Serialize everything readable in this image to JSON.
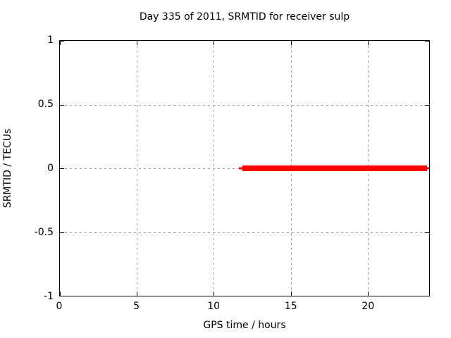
{
  "chart_data": {
    "type": "line",
    "title": "Day 335 of 2011, SRMTID for receiver sulp",
    "xlabel": "GPS time / hours",
    "ylabel": "SRMTID / TECUs",
    "xlim": [
      0,
      24
    ],
    "ylim": [
      -1,
      1
    ],
    "grid": true,
    "legend": false,
    "xticks": [
      {
        "v": 0,
        "label": "0"
      },
      {
        "v": 5,
        "label": "5"
      },
      {
        "v": 10,
        "label": "10"
      },
      {
        "v": 15,
        "label": "15"
      },
      {
        "v": 20,
        "label": "20"
      }
    ],
    "yticks": [
      {
        "v": 1,
        "label": "1"
      },
      {
        "v": 0.5,
        "label": "0.5"
      },
      {
        "v": 0,
        "label": "0"
      },
      {
        "v": -0.5,
        "label": "-0.5"
      },
      {
        "v": -1,
        "label": "-1"
      }
    ],
    "series": [
      {
        "name": "SRMTID",
        "color": "#ff0000",
        "y": 0,
        "x_start": 11.65,
        "x_end": 24,
        "core_x_start": 11.84,
        "core_x_end": 23.87,
        "core_thickness_px": 8,
        "tail_thickness_px": 3,
        "points": [
          [
            11.65,
            0
          ],
          [
            24,
            0
          ]
        ]
      }
    ]
  },
  "colors": {
    "background": "#ffffff",
    "plot_border": "#000000",
    "grid": "#a0a0a0",
    "text": "#000000",
    "series_red": "#ff0000"
  }
}
